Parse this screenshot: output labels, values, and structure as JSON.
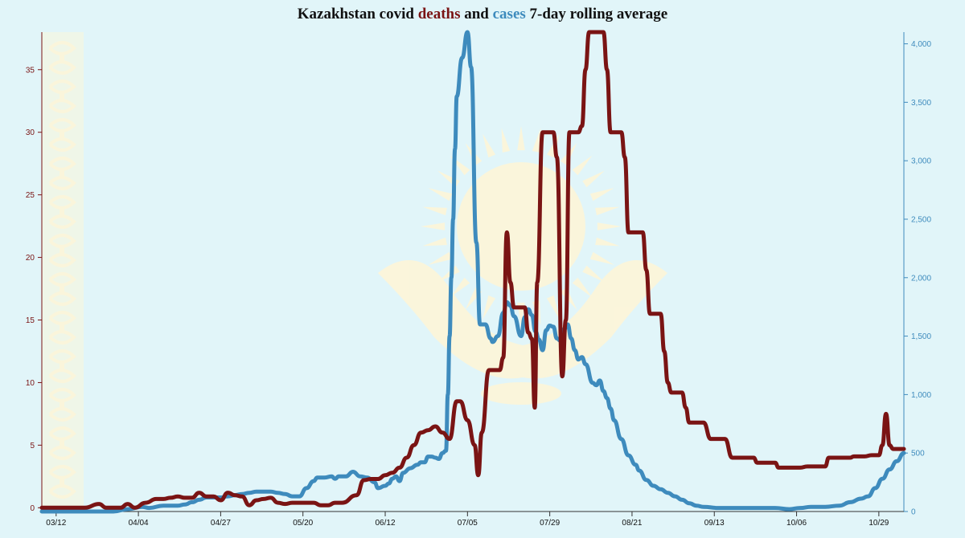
{
  "title": {
    "prefix": "Kazakhstan covid ",
    "deaths_word": "deaths",
    "middle": " and ",
    "cases_word": "cases",
    "suffix": " 7-day rolling average"
  },
  "colors": {
    "background": "#e1f5f9",
    "deaths": "#7a1414",
    "cases": "#3e8bbd",
    "emblem": "#fff5d6"
  },
  "chart_data": {
    "type": "line",
    "title": "Kazakhstan covid deaths and cases 7-day rolling average",
    "x_tick_labels": [
      "03/12",
      "04/04",
      "04/27",
      "05/20",
      "06/12",
      "07/05",
      "07/29",
      "08/21",
      "09/13",
      "10/06",
      "10/29"
    ],
    "x_ticks": [
      0,
      23,
      46,
      69,
      92,
      115,
      138,
      161,
      184,
      207,
      230
    ],
    "x_range": [
      -4,
      237
    ],
    "y_left": {
      "ticks": [
        0,
        5,
        10,
        15,
        20,
        25,
        30,
        35
      ],
      "range": [
        -0.3,
        38
      ]
    },
    "y_right": {
      "ticks": [
        0,
        500,
        1000,
        1500,
        2000,
        2500,
        3000,
        3500,
        4000
      ],
      "tick_labels": [
        "0",
        "500",
        "1,000",
        "1,500",
        "2,000",
        "2,500",
        "3,000",
        "3,500",
        "4,000"
      ],
      "range": [
        0,
        4100
      ]
    },
    "grid": false,
    "legend": "none",
    "series": [
      {
        "name": "deaths",
        "axis": "left",
        "color": "#7a1414",
        "points": [
          [
            -4,
            0
          ],
          [
            8,
            0
          ],
          [
            12,
            0.3
          ],
          [
            14,
            0
          ],
          [
            18,
            0
          ],
          [
            20,
            0.3
          ],
          [
            22,
            0
          ],
          [
            25,
            0.4
          ],
          [
            28,
            0.7
          ],
          [
            30,
            0.7
          ],
          [
            32,
            0.8
          ],
          [
            34,
            0.9
          ],
          [
            36,
            0.8
          ],
          [
            38,
            0.8
          ],
          [
            40,
            1.2
          ],
          [
            42,
            0.9
          ],
          [
            44,
            0.9
          ],
          [
            46,
            0.6
          ],
          [
            48,
            1.2
          ],
          [
            50,
            1
          ],
          [
            52,
            0.9
          ],
          [
            54,
            0.2
          ],
          [
            56,
            0.6
          ],
          [
            58,
            0.7
          ],
          [
            60,
            0.8
          ],
          [
            62,
            0.4
          ],
          [
            64,
            0.3
          ],
          [
            66,
            0.4
          ],
          [
            68,
            0.4
          ],
          [
            72,
            0.4
          ],
          [
            74,
            0.2
          ],
          [
            76,
            0.2
          ],
          [
            78,
            0.4
          ],
          [
            80,
            0.4
          ],
          [
            84,
            1
          ],
          [
            86,
            2.2
          ],
          [
            88,
            2.3
          ],
          [
            90,
            2.3
          ],
          [
            92,
            2.6
          ],
          [
            94,
            2.8
          ],
          [
            96,
            3.2
          ],
          [
            98,
            4
          ],
          [
            100,
            5
          ],
          [
            102,
            6
          ],
          [
            104,
            6.2
          ],
          [
            106,
            6.5
          ],
          [
            108,
            6
          ],
          [
            110,
            5.5
          ],
          [
            112,
            8.5
          ],
          [
            113,
            8.5
          ],
          [
            115,
            7
          ],
          [
            117,
            5
          ],
          [
            118,
            2.6
          ],
          [
            119,
            6
          ],
          [
            121,
            11
          ],
          [
            124,
            11
          ],
          [
            125,
            12
          ],
          [
            126,
            22
          ],
          [
            127,
            18
          ],
          [
            128,
            16
          ],
          [
            129,
            16
          ],
          [
            131,
            16
          ],
          [
            132,
            14
          ],
          [
            133,
            13.5
          ],
          [
            133.8,
            8
          ],
          [
            134.5,
            18
          ],
          [
            136,
            30
          ],
          [
            139,
            30
          ],
          [
            140,
            28
          ],
          [
            141.5,
            10.5
          ],
          [
            142.5,
            15
          ],
          [
            143.5,
            30
          ],
          [
            146,
            30
          ],
          [
            147,
            30.5
          ],
          [
            148,
            35
          ],
          [
            149,
            38
          ],
          [
            153,
            38
          ],
          [
            154,
            35
          ],
          [
            155,
            30
          ],
          [
            156,
            30
          ],
          [
            158,
            30
          ],
          [
            159,
            28
          ],
          [
            160,
            22
          ],
          [
            162,
            22
          ],
          [
            164,
            22
          ],
          [
            165,
            19
          ],
          [
            166,
            15.5
          ],
          [
            168,
            15.5
          ],
          [
            169,
            15.5
          ],
          [
            170,
            12.5
          ],
          [
            171,
            10
          ],
          [
            172,
            9.2
          ],
          [
            175,
            9.2
          ],
          [
            176,
            8
          ],
          [
            177,
            6.8
          ],
          [
            181,
            6.8
          ],
          [
            183,
            5.5
          ],
          [
            187,
            5.5
          ],
          [
            189,
            4
          ],
          [
            195,
            4
          ],
          [
            196,
            3.6
          ],
          [
            201,
            3.6
          ],
          [
            202,
            3.2
          ],
          [
            208,
            3.2
          ],
          [
            210,
            3.3
          ],
          [
            214,
            3.3
          ],
          [
            215,
            3.3
          ],
          [
            216,
            4
          ],
          [
            222,
            4
          ],
          [
            223,
            4.1
          ],
          [
            226,
            4.1
          ],
          [
            228,
            4.2
          ],
          [
            230,
            4.2
          ],
          [
            231,
            5
          ],
          [
            232,
            7.5
          ],
          [
            233,
            5
          ],
          [
            234,
            4.7
          ],
          [
            237,
            4.7
          ]
        ]
      },
      {
        "name": "cases",
        "axis": "right",
        "color": "#3e8bbd",
        "points": [
          [
            -4,
            0
          ],
          [
            16,
            0
          ],
          [
            20,
            20
          ],
          [
            24,
            40
          ],
          [
            26,
            30
          ],
          [
            30,
            50
          ],
          [
            34,
            50
          ],
          [
            36,
            60
          ],
          [
            38,
            80
          ],
          [
            40,
            100
          ],
          [
            42,
            120
          ],
          [
            44,
            120
          ],
          [
            46,
            120
          ],
          [
            48,
            130
          ],
          [
            50,
            140
          ],
          [
            52,
            150
          ],
          [
            54,
            160
          ],
          [
            56,
            170
          ],
          [
            58,
            170
          ],
          [
            60,
            170
          ],
          [
            62,
            160
          ],
          [
            64,
            150
          ],
          [
            66,
            130
          ],
          [
            68,
            130
          ],
          [
            70,
            200
          ],
          [
            72,
            260
          ],
          [
            73,
            290
          ],
          [
            75,
            290
          ],
          [
            77,
            300
          ],
          [
            78,
            280
          ],
          [
            79,
            300
          ],
          [
            81,
            300
          ],
          [
            83,
            340
          ],
          [
            85,
            300
          ],
          [
            87,
            290
          ],
          [
            89,
            250
          ],
          [
            90,
            200
          ],
          [
            92,
            220
          ],
          [
            93,
            240
          ],
          [
            94,
            280
          ],
          [
            95,
            300
          ],
          [
            96,
            260
          ],
          [
            97,
            330
          ],
          [
            99,
            370
          ],
          [
            101,
            400
          ],
          [
            102,
            420
          ],
          [
            103,
            420
          ],
          [
            104,
            470
          ],
          [
            105,
            470
          ],
          [
            106,
            460
          ],
          [
            107,
            450
          ],
          [
            108,
            500
          ],
          [
            109,
            520
          ],
          [
            109.5,
            1000
          ],
          [
            110,
            1500
          ],
          [
            110.5,
            2000
          ],
          [
            111,
            2500
          ],
          [
            111.5,
            3100
          ],
          [
            112,
            3550
          ],
          [
            113.5,
            3880
          ],
          [
            115,
            4100
          ],
          [
            116,
            3800
          ],
          [
            117.5,
            2300
          ],
          [
            118.5,
            1600
          ],
          [
            120,
            1600
          ],
          [
            121.5,
            1480
          ],
          [
            122,
            1450
          ],
          [
            123.5,
            1500
          ],
          [
            125,
            1700
          ],
          [
            126,
            1790
          ],
          [
            127,
            1760
          ],
          [
            128,
            1670
          ],
          [
            130,
            1500
          ],
          [
            131,
            1660
          ],
          [
            132,
            1730
          ],
          [
            133,
            1680
          ],
          [
            134,
            1540
          ],
          [
            135,
            1470
          ],
          [
            136,
            1380
          ],
          [
            137,
            1550
          ],
          [
            138,
            1590
          ],
          [
            139,
            1580
          ],
          [
            140,
            1480
          ],
          [
            141,
            1460
          ],
          [
            142,
            1560
          ],
          [
            143,
            1600
          ],
          [
            144,
            1480
          ],
          [
            145,
            1380
          ],
          [
            146,
            1300
          ],
          [
            147,
            1320
          ],
          [
            148,
            1260
          ],
          [
            150,
            1100
          ],
          [
            151,
            1080
          ],
          [
            152,
            1120
          ],
          [
            153,
            1030
          ],
          [
            154,
            970
          ],
          [
            155,
            880
          ],
          [
            156,
            780
          ],
          [
            158,
            620
          ],
          [
            160,
            480
          ],
          [
            162,
            400
          ],
          [
            163,
            350
          ],
          [
            165,
            270
          ],
          [
            167,
            220
          ],
          [
            169,
            190
          ],
          [
            171,
            160
          ],
          [
            173,
            130
          ],
          [
            175,
            100
          ],
          [
            177,
            70
          ],
          [
            179,
            50
          ],
          [
            181,
            40
          ],
          [
            185,
            30
          ],
          [
            189,
            30
          ],
          [
            195,
            30
          ],
          [
            201,
            30
          ],
          [
            205,
            20
          ],
          [
            208,
            30
          ],
          [
            211,
            40
          ],
          [
            215,
            40
          ],
          [
            219,
            50
          ],
          [
            222,
            80
          ],
          [
            225,
            110
          ],
          [
            227,
            130
          ],
          [
            229,
            200
          ],
          [
            231,
            280
          ],
          [
            233,
            360
          ],
          [
            235,
            430
          ],
          [
            237,
            500
          ]
        ]
      }
    ]
  }
}
